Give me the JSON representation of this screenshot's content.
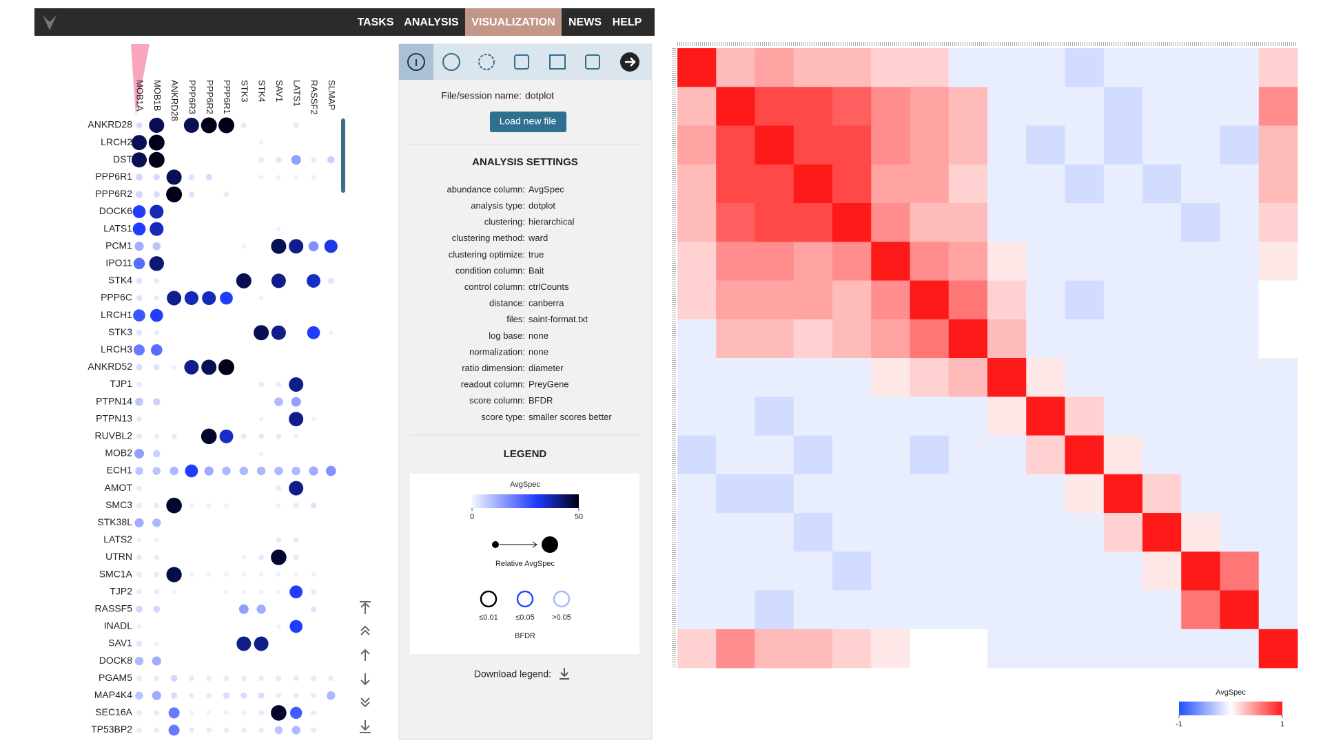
{
  "nav": {
    "items": [
      {
        "label": "TASKS",
        "active": false
      },
      {
        "label": "ANALYSIS",
        "active": false
      },
      {
        "label": "VISUALIZATION",
        "active": true
      },
      {
        "label": "NEWS",
        "active": false
      },
      {
        "label": "HELP",
        "active": false
      }
    ]
  },
  "dotplot": {
    "columns": [
      "MOB1A",
      "MOB1B",
      "ANKRD28",
      "PPP6R3",
      "PPP6R2",
      "PPP6R1",
      "STK3",
      "STK4",
      "SAV1",
      "LATS1",
      "RASSF2",
      "SLMAP"
    ],
    "rows": [
      {
        "label": "ANKRD28",
        "values": [
          4,
          45,
          null,
          45,
          50,
          50,
          2,
          null,
          null,
          2,
          null,
          null
        ]
      },
      {
        "label": "LRCH2",
        "values": [
          45,
          50,
          null,
          null,
          null,
          null,
          null,
          1,
          null,
          null,
          null,
          null
        ]
      },
      {
        "label": "DST",
        "values": [
          45,
          50,
          null,
          null,
          null,
          null,
          null,
          2,
          3,
          14,
          2,
          6
        ]
      },
      {
        "label": "PPP6R1",
        "values": [
          5,
          4,
          45,
          3,
          4,
          null,
          null,
          1,
          1,
          1,
          1,
          null
        ]
      },
      {
        "label": "PPP6R2",
        "values": [
          5,
          4,
          50,
          3,
          null,
          2,
          null,
          null,
          null,
          null,
          null,
          null
        ]
      },
      {
        "label": "DOCK6",
        "values": [
          30,
          36,
          null,
          null,
          null,
          null,
          null,
          null,
          null,
          null,
          null,
          null
        ]
      },
      {
        "label": "LATS1",
        "values": [
          30,
          36,
          null,
          null,
          null,
          null,
          null,
          null,
          1,
          null,
          null,
          null
        ]
      },
      {
        "label": "PCM1",
        "values": [
          12,
          8,
          null,
          null,
          null,
          null,
          1,
          null,
          45,
          40,
          16,
          32
        ]
      },
      {
        "label": "IPO11",
        "values": [
          22,
          42,
          null,
          null,
          null,
          null,
          null,
          null,
          null,
          null,
          null,
          null
        ]
      },
      {
        "label": "STK4",
        "values": [
          3,
          2,
          null,
          null,
          null,
          null,
          45,
          null,
          40,
          null,
          35,
          3
        ]
      },
      {
        "label": "PPP6C",
        "values": [
          3,
          2,
          40,
          36,
          36,
          30,
          null,
          1,
          null,
          null,
          null,
          null
        ]
      },
      {
        "label": "LRCH1",
        "values": [
          26,
          30,
          null,
          null,
          null,
          null,
          null,
          null,
          null,
          null,
          null,
          null
        ]
      },
      {
        "label": "STK3",
        "values": [
          3,
          2,
          null,
          null,
          null,
          null,
          null,
          45,
          40,
          null,
          30,
          1
        ]
      },
      {
        "label": "LRCH3",
        "values": [
          20,
          22,
          null,
          null,
          null,
          null,
          null,
          null,
          null,
          null,
          null,
          null
        ]
      },
      {
        "label": "ANKRD52",
        "values": [
          4,
          3,
          1,
          40,
          45,
          50,
          null,
          null,
          null,
          null,
          null,
          null
        ]
      },
      {
        "label": "TJP1",
        "values": [
          2,
          null,
          null,
          null,
          null,
          null,
          null,
          2,
          2,
          40,
          null,
          null
        ]
      },
      {
        "label": "PTPN14",
        "values": [
          8,
          6,
          null,
          null,
          null,
          null,
          null,
          null,
          10,
          14,
          null,
          null
        ]
      },
      {
        "label": "PTPN13",
        "values": [
          2,
          null,
          null,
          null,
          null,
          null,
          null,
          1,
          null,
          40,
          1,
          null
        ]
      },
      {
        "label": "RUVBL2",
        "values": [
          2,
          2,
          2,
          null,
          48,
          35,
          2,
          2,
          2,
          1,
          null,
          null
        ]
      },
      {
        "label": "MOB2",
        "values": [
          14,
          6,
          null,
          null,
          null,
          null,
          null,
          1,
          null,
          null,
          null,
          null
        ]
      },
      {
        "label": "ECH1",
        "values": [
          8,
          8,
          10,
          30,
          12,
          10,
          10,
          10,
          10,
          10,
          12,
          16
        ]
      },
      {
        "label": "AMOT",
        "values": [
          2,
          null,
          null,
          null,
          null,
          null,
          null,
          null,
          2,
          40,
          null,
          null
        ]
      },
      {
        "label": "SMC3",
        "values": [
          2,
          2,
          48,
          1,
          1,
          1,
          null,
          null,
          1,
          2,
          3,
          null
        ]
      },
      {
        "label": "STK38L",
        "values": [
          12,
          10,
          null,
          null,
          null,
          null,
          null,
          null,
          null,
          null,
          null,
          null
        ]
      },
      {
        "label": "LATS2",
        "values": [
          1,
          1,
          null,
          null,
          null,
          null,
          null,
          null,
          2,
          2,
          null,
          null
        ]
      },
      {
        "label": "UTRN",
        "values": [
          2,
          2,
          null,
          null,
          null,
          null,
          1,
          2,
          48,
          2,
          null,
          null
        ]
      },
      {
        "label": "SMC1A",
        "values": [
          2,
          2,
          46,
          1,
          1,
          1,
          1,
          1,
          1,
          1,
          1,
          null
        ]
      },
      {
        "label": "TJP2",
        "values": [
          2,
          2,
          1,
          null,
          null,
          1,
          1,
          1,
          1,
          30,
          2,
          null
        ]
      },
      {
        "label": "RASSF5",
        "values": [
          5,
          5,
          null,
          null,
          null,
          null,
          14,
          12,
          null,
          null,
          3,
          null
        ]
      },
      {
        "label": "INADL",
        "values": [
          1,
          null,
          null,
          null,
          null,
          null,
          null,
          null,
          1,
          30,
          null,
          null
        ]
      },
      {
        "label": "SAV1",
        "values": [
          3,
          1,
          null,
          null,
          null,
          null,
          40,
          40,
          null,
          null,
          null,
          null
        ]
      },
      {
        "label": "DOCK8",
        "values": [
          10,
          12,
          null,
          null,
          null,
          null,
          null,
          null,
          null,
          null,
          null,
          null
        ]
      },
      {
        "label": "PGAM5",
        "values": [
          2,
          2,
          5,
          2,
          2,
          2,
          2,
          2,
          2,
          2,
          2,
          2
        ]
      },
      {
        "label": "MAP4K4",
        "values": [
          8,
          12,
          4,
          2,
          2,
          4,
          4,
          4,
          2,
          2,
          2,
          10
        ]
      },
      {
        "label": "SEC16A",
        "values": [
          2,
          2,
          20,
          1,
          1,
          1,
          1,
          2,
          48,
          25,
          2,
          null
        ]
      },
      {
        "label": "TP53BP2",
        "values": [
          2,
          2,
          20,
          2,
          2,
          2,
          2,
          2,
          8,
          10,
          2,
          null
        ]
      }
    ]
  },
  "panel": {
    "file_label": "File/session name:",
    "file_name": "dotplot",
    "load_button": "Load new file",
    "settings_title": "ANALYSIS SETTINGS",
    "settings": [
      {
        "key": "abundance column:",
        "value": "AvgSpec"
      },
      {
        "key": "analysis type:",
        "value": "dotplot"
      },
      {
        "key": "clustering:",
        "value": "hierarchical"
      },
      {
        "key": "clustering method:",
        "value": "ward"
      },
      {
        "key": "clustering optimize:",
        "value": "true"
      },
      {
        "key": "condition column:",
        "value": "Bait"
      },
      {
        "key": "control column:",
        "value": "ctrlCounts"
      },
      {
        "key": "distance:",
        "value": "canberra"
      },
      {
        "key": "files:",
        "value": "saint-format.txt"
      },
      {
        "key": "log base:",
        "value": "none"
      },
      {
        "key": "normalization:",
        "value": "none"
      },
      {
        "key": "ratio dimension:",
        "value": "diameter"
      },
      {
        "key": "readout column:",
        "value": "PreyGene"
      },
      {
        "key": "score column:",
        "value": "BFDR"
      },
      {
        "key": "score type:",
        "value": "smaller scores better"
      }
    ],
    "legend_title": "LEGEND",
    "legend": {
      "title": "AvgSpec",
      "ticks": [
        0,
        50
      ],
      "size_label": "Relative AvgSpec",
      "score_title": "BFDR",
      "score_classes": [
        {
          "label": "≤0.01",
          "color": "#000000"
        },
        {
          "label": "≤0.05",
          "color": "#2a4cff"
        },
        {
          "label": ">0.05",
          "color": "#a9b9ff"
        }
      ]
    },
    "download_label": "Download legend:"
  },
  "heatmap": {
    "matrix": [
      [
        1,
        0.3,
        0.4,
        0.3,
        0.3,
        0.2,
        0.2,
        -0.1,
        -0.1,
        -0.1,
        -0.2,
        -0.1,
        -0.1,
        -0.1,
        -0.1,
        0.2
      ],
      [
        0.3,
        1,
        0.8,
        0.8,
        0.7,
        0.5,
        0.4,
        0.3,
        -0.1,
        -0.1,
        -0.1,
        -0.2,
        -0.1,
        -0.1,
        -0.1,
        0.5
      ],
      [
        0.4,
        0.8,
        1,
        0.8,
        0.8,
        0.5,
        0.4,
        0.3,
        -0.1,
        -0.2,
        -0.1,
        -0.2,
        -0.1,
        -0.1,
        -0.2,
        0.3
      ],
      [
        0.3,
        0.8,
        0.8,
        1,
        0.8,
        0.4,
        0.4,
        0.2,
        -0.1,
        -0.1,
        -0.2,
        -0.1,
        -0.2,
        -0.1,
        -0.1,
        0.3
      ],
      [
        0.3,
        0.7,
        0.8,
        0.8,
        1,
        0.5,
        0.3,
        0.3,
        -0.1,
        -0.1,
        -0.1,
        -0.1,
        -0.1,
        -0.2,
        -0.1,
        0.2
      ],
      [
        0.2,
        0.5,
        0.5,
        0.4,
        0.5,
        1,
        0.5,
        0.4,
        0.1,
        -0.1,
        -0.1,
        -0.1,
        -0.1,
        -0.1,
        -0.1,
        0.1
      ],
      [
        0.2,
        0.4,
        0.4,
        0.4,
        0.3,
        0.5,
        1,
        0.6,
        0.2,
        -0.1,
        -0.2,
        -0.1,
        -0.1,
        -0.1,
        -0.1,
        0
      ],
      [
        -0.1,
        0.3,
        0.3,
        0.2,
        0.3,
        0.4,
        0.6,
        1,
        0.3,
        -0.1,
        -0.1,
        -0.1,
        -0.1,
        -0.1,
        -0.1,
        0
      ],
      [
        -0.1,
        -0.1,
        -0.1,
        -0.1,
        -0.1,
        0.1,
        0.2,
        0.3,
        1,
        0.1,
        -0.1,
        -0.1,
        -0.1,
        -0.1,
        -0.1,
        -0.1
      ],
      [
        -0.1,
        -0.1,
        -0.2,
        -0.1,
        -0.1,
        -0.1,
        -0.1,
        -0.1,
        0.1,
        1,
        0.2,
        -0.1,
        -0.1,
        -0.1,
        -0.1,
        -0.1
      ],
      [
        -0.2,
        -0.1,
        -0.1,
        -0.2,
        -0.1,
        -0.1,
        -0.2,
        -0.1,
        -0.1,
        0.2,
        1,
        0.1,
        -0.1,
        -0.1,
        -0.1,
        -0.1
      ],
      [
        -0.1,
        -0.2,
        -0.2,
        -0.1,
        -0.1,
        -0.1,
        -0.1,
        -0.1,
        -0.1,
        -0.1,
        0.1,
        1,
        0.2,
        -0.1,
        -0.1,
        -0.1
      ],
      [
        -0.1,
        -0.1,
        -0.1,
        -0.2,
        -0.1,
        -0.1,
        -0.1,
        -0.1,
        -0.1,
        -0.1,
        -0.1,
        0.2,
        1,
        0.1,
        -0.1,
        -0.1
      ],
      [
        -0.1,
        -0.1,
        -0.1,
        -0.1,
        -0.2,
        -0.1,
        -0.1,
        -0.1,
        -0.1,
        -0.1,
        -0.1,
        -0.1,
        0.1,
        1,
        0.6,
        -0.1
      ],
      [
        -0.1,
        -0.1,
        -0.2,
        -0.1,
        -0.1,
        -0.1,
        -0.1,
        -0.1,
        -0.1,
        -0.1,
        -0.1,
        -0.1,
        -0.1,
        0.6,
        1,
        -0.1
      ],
      [
        0.2,
        0.5,
        0.3,
        0.3,
        0.2,
        0.1,
        0,
        0,
        -0.1,
        -0.1,
        -0.1,
        -0.1,
        -0.1,
        -0.1,
        -0.1,
        1
      ]
    ],
    "legend": {
      "title": "AvgSpec",
      "ticks": [
        -1,
        1
      ]
    }
  }
}
